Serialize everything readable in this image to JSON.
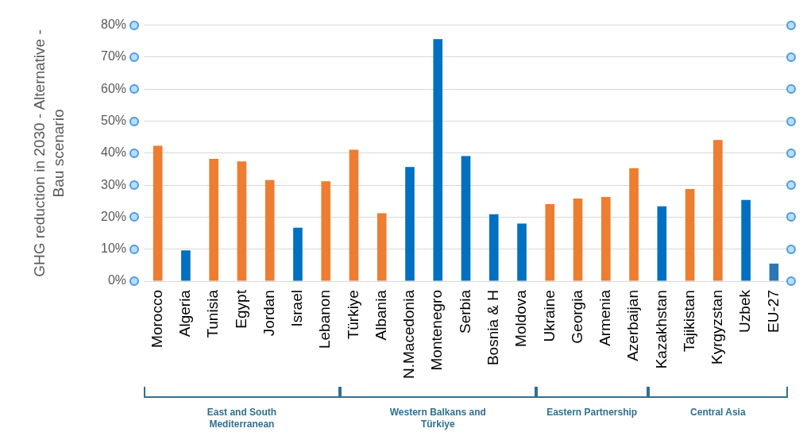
{
  "chart_data": {
    "type": "bar",
    "ylabel": "GHG reduction in 2030 - Alternative - Bau scenario",
    "categories": [
      "Morocco",
      "Algeria",
      "Tunisia",
      "Egypt",
      "Jordan",
      "Israel",
      "Lebanon",
      "Türkiye",
      "Albania",
      "N.Macedonia",
      "Montenegro",
      "Serbia",
      "Bosnia & H",
      "Moldova",
      "Ukraine",
      "Georgia",
      "Armenia",
      "Azerbaijan",
      "Kazakhstan",
      "Tajikistan",
      "Kyrgyzstan",
      "Uzbek",
      "EU-27"
    ],
    "values": [
      42.3,
      9.6,
      38.2,
      37.4,
      31.6,
      16.7,
      31.2,
      41.1,
      21.2,
      35.7,
      75.6,
      39.1,
      20.9,
      18.0,
      24.1,
      25.8,
      26.3,
      35.3,
      23.4,
      28.8,
      44.1,
      25.4,
      5.5
    ],
    "colors": [
      "#ed7d31",
      "#0070c0",
      "#ed7d31",
      "#ed7d31",
      "#ed7d31",
      "#0070c0",
      "#ed7d31",
      "#ed7d31",
      "#ed7d31",
      "#0070c0",
      "#0070c0",
      "#0070c0",
      "#0070c0",
      "#0070c0",
      "#ed7d31",
      "#ed7d31",
      "#ed7d31",
      "#ed7d31",
      "#0070c0",
      "#ed7d31",
      "#ed7d31",
      "#0070c0",
      "#2e75b6"
    ],
    "ylim": [
      0,
      80
    ],
    "yticks": [
      {
        "value": 0,
        "label": "0%"
      },
      {
        "value": 10,
        "label": "10%"
      },
      {
        "value": 20,
        "label": "20%"
      },
      {
        "value": 30,
        "label": "30%"
      },
      {
        "value": 40,
        "label": "40%"
      },
      {
        "value": 50,
        "label": "50%"
      },
      {
        "value": 60,
        "label": "60%"
      },
      {
        "value": 70,
        "label": "70%"
      },
      {
        "value": 80,
        "label": "80%"
      }
    ],
    "grid": "y",
    "annotations": [
      "East and South Mediterranean",
      "Western Balkans and Türkiye",
      "Eastern Partnership",
      "Central Asia"
    ]
  }
}
